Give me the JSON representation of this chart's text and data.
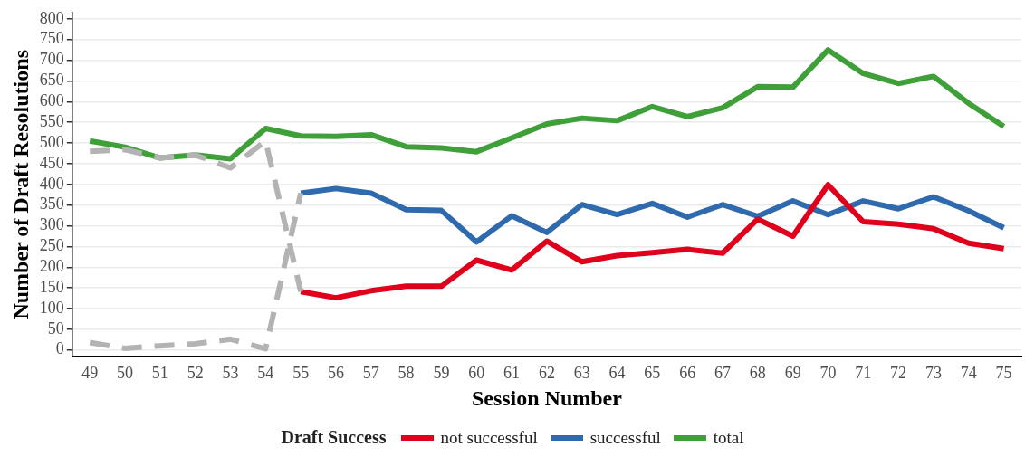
{
  "chart_data": {
    "type": "line",
    "xlabel": "Session Number",
    "ylabel": "Number of Draft Resolutions",
    "legend_title": "Draft Success",
    "categories": [
      "49",
      "50",
      "51",
      "52",
      "53",
      "54",
      "55",
      "56",
      "57",
      "58",
      "59",
      "60",
      "61",
      "62",
      "63",
      "64",
      "65",
      "66",
      "67",
      "68",
      "69",
      "70",
      "71",
      "72",
      "73",
      "74",
      "75"
    ],
    "series": [
      {
        "color": "#b3b3b3",
        "line_style": "dashed",
        "values": [
          480,
          484,
          464,
          471,
          440,
          505,
          141,
          null,
          null,
          null,
          null,
          null,
          null,
          null,
          null,
          null,
          null,
          null,
          null,
          null,
          null,
          null,
          null,
          null,
          null,
          null,
          null
        ]
      },
      {
        "color": "#b3b3b3",
        "line_style": "dashed",
        "values": [
          18,
          4,
          10,
          15,
          26,
          3,
          379,
          null,
          null,
          null,
          null,
          null,
          null,
          null,
          null,
          null,
          null,
          null,
          null,
          null,
          null,
          null,
          null,
          null,
          null,
          null,
          null
        ]
      },
      {
        "name": "not successful",
        "color": "#e0001b",
        "values": [
          null,
          null,
          null,
          null,
          null,
          null,
          141,
          126,
          143,
          154,
          154,
          217,
          193,
          263,
          213,
          228,
          235,
          243,
          234,
          316,
          275,
          399,
          310,
          304,
          293,
          258,
          245
        ]
      },
      {
        "name": "successful",
        "color": "#2e6aad",
        "values": [
          null,
          null,
          null,
          null,
          null,
          null,
          379,
          390,
          379,
          339,
          337,
          261,
          324,
          284,
          351,
          327,
          354,
          321,
          351,
          323,
          360,
          327,
          360,
          341,
          370,
          336,
          295
        ]
      },
      {
        "name": "total",
        "color": "#3fa03a",
        "values": [
          505,
          490,
          464,
          471,
          462,
          535,
          517,
          516,
          520,
          491,
          488,
          479,
          512,
          546,
          560,
          554,
          588,
          564,
          585,
          636,
          635,
          725,
          668,
          644,
          661,
          596,
          540
        ]
      }
    ],
    "ylim": [
      -15,
      815
    ],
    "yticks": [
      0,
      50,
      100,
      150,
      200,
      250,
      300,
      350,
      400,
      450,
      500,
      550,
      600,
      650,
      700,
      750,
      800
    ],
    "grid": "y",
    "legend": "bottom",
    "line_style": "solid",
    "marker": "none"
  }
}
